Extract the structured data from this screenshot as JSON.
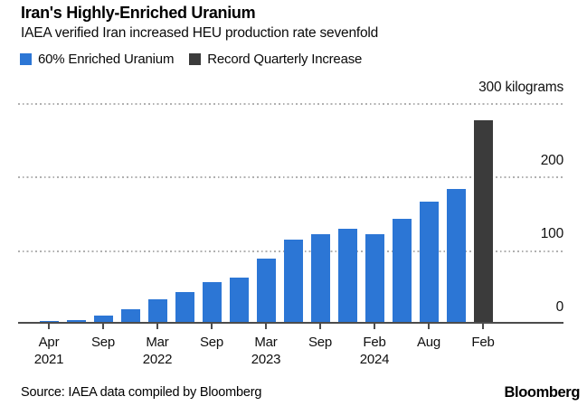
{
  "header": {
    "title": "Iran's Highly-Enriched Uranium",
    "subtitle": "IAEA verified Iran increased HEU production rate sevenfold"
  },
  "legend": [
    {
      "label": "60% Enriched Uranium",
      "color": "#2c76d5"
    },
    {
      "label": "Record Quarterly Increase",
      "color": "#3b3b3b"
    }
  ],
  "chart_data": {
    "type": "bar",
    "title": "Iran's Highly-Enriched Uranium",
    "subtitle": "IAEA verified Iran increased HEU production rate sevenfold",
    "ylabel": "kilograms",
    "ylim": [
      0,
      300
    ],
    "grid": "horizontal-dotted",
    "legend_position": "top-left",
    "y_axis": {
      "ticks": [
        {
          "value": 300,
          "label": "300 kilograms"
        },
        {
          "value": 200,
          "label": "200"
        },
        {
          "value": 100,
          "label": "100"
        },
        {
          "value": 0,
          "label": "0"
        }
      ]
    },
    "x_ticks": [
      {
        "month": "Apr",
        "year": "2021"
      },
      {
        "month": "Sep",
        "year": ""
      },
      {
        "month": "Mar",
        "year": "2022"
      },
      {
        "month": "Sep",
        "year": ""
      },
      {
        "month": "Mar",
        "year": "2023"
      },
      {
        "month": "Sep",
        "year": ""
      },
      {
        "month": "Feb",
        "year": "2024"
      },
      {
        "month": "Aug",
        "year": ""
      },
      {
        "month": "Feb",
        "year": ""
      }
    ],
    "series": [
      {
        "name": "60% Enriched Uranium",
        "color": "#2c76d5"
      },
      {
        "name": "Record Quarterly Increase",
        "color": "#3b3b3b"
      }
    ],
    "bars": [
      {
        "value": 2,
        "series": 0
      },
      {
        "value": 4,
        "series": 0
      },
      {
        "value": 10,
        "series": 0
      },
      {
        "value": 18,
        "series": 0
      },
      {
        "value": 32,
        "series": 0
      },
      {
        "value": 42,
        "series": 0
      },
      {
        "value": 55,
        "series": 0
      },
      {
        "value": 62,
        "series": 0
      },
      {
        "value": 87,
        "series": 0
      },
      {
        "value": 113,
        "series": 0
      },
      {
        "value": 121,
        "series": 0
      },
      {
        "value": 128,
        "series": 0
      },
      {
        "value": 121,
        "series": 0
      },
      {
        "value": 142,
        "series": 0
      },
      {
        "value": 165,
        "series": 0
      },
      {
        "value": 182,
        "series": 0
      },
      {
        "value": 275,
        "series": 1
      }
    ]
  },
  "footer": {
    "source": "Source: IAEA data compiled by Bloomberg",
    "brand": "Bloomberg"
  }
}
